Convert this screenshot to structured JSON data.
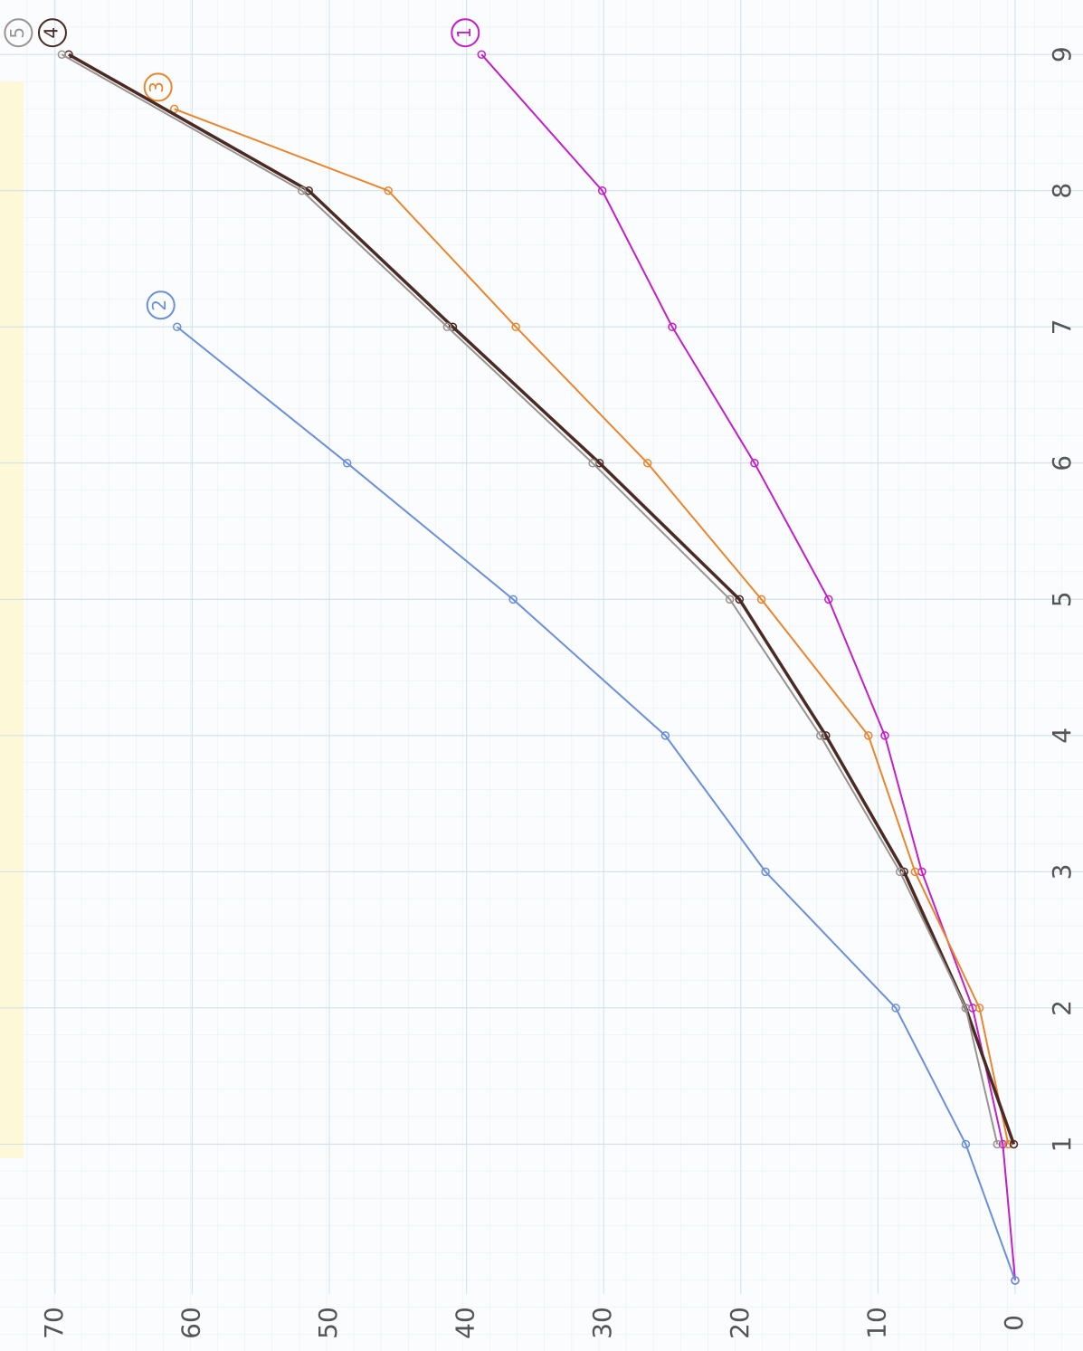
{
  "chart_data": {
    "type": "line",
    "xlim": [
      0,
      9.4
    ],
    "ylim": [
      0,
      74
    ],
    "xticks": [
      1,
      2,
      3,
      4,
      5,
      6,
      7,
      8,
      9
    ],
    "yticks": [
      0,
      10,
      20,
      30,
      40,
      50,
      60,
      70
    ],
    "grid": true,
    "series": [
      {
        "name": "1",
        "color": "#c21fc8",
        "x": [
          0,
          1,
          2,
          3,
          4,
          5,
          6,
          7,
          8,
          9
        ],
        "values": [
          0,
          0.9,
          3.1,
          6.8,
          9.5,
          13.6,
          19,
          25,
          30.1,
          38.9
        ]
      },
      {
        "name": "2",
        "color": "#6b8fd8",
        "x": [
          0,
          1,
          2,
          3,
          4,
          5,
          6,
          7
        ],
        "values": [
          0,
          3.6,
          8.7,
          18.2,
          25.5,
          36.6,
          48.7,
          61.1
        ]
      },
      {
        "name": "3",
        "color": "#e8862e",
        "x": [
          1,
          2,
          3,
          4,
          5,
          6,
          7,
          8,
          8.6
        ],
        "values": [
          0.5,
          2.6,
          7.3,
          10.7,
          18.5,
          26.8,
          36.4,
          45.7,
          61.3
        ]
      },
      {
        "name": "4",
        "color": "#4a2a22",
        "x": [
          1,
          2,
          3,
          4,
          5,
          6,
          7,
          8,
          9
        ],
        "values": [
          0.1,
          3.6,
          8.1,
          13.8,
          20.1,
          30.3,
          41,
          51.5,
          69
        ]
      },
      {
        "name": "5",
        "color": "#9a9490",
        "x": [
          1,
          2,
          3,
          4,
          5,
          6,
          7,
          8,
          9
        ],
        "values": [
          1.3,
          3.6,
          8.4,
          14.2,
          20.8,
          30.8,
          41.4,
          52,
          69.5
        ]
      }
    ]
  }
}
